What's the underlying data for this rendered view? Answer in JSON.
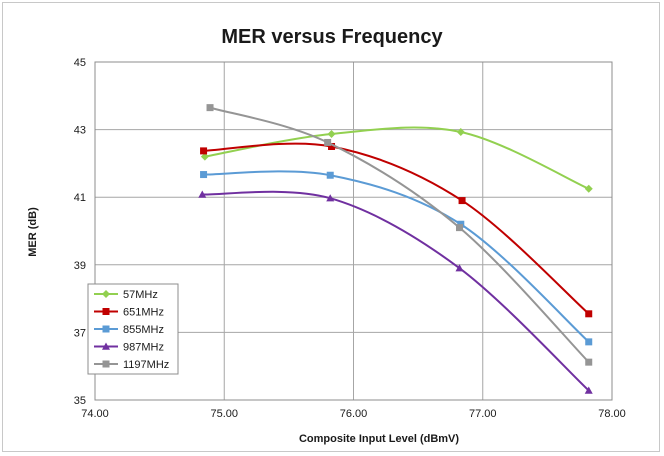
{
  "chart_data": {
    "type": "line",
    "title": "MER versus Frequency",
    "xlabel": "Composite Input Level (dBmV)",
    "ylabel": "MER (dB)",
    "xlim": [
      74.0,
      78.0
    ],
    "ylim": [
      35,
      45
    ],
    "x_ticks": [
      "74.00",
      "75.00",
      "76.00",
      "77.00",
      "78.00"
    ],
    "y_ticks": [
      "35",
      "37",
      "39",
      "41",
      "43",
      "45"
    ],
    "x_tick_values": [
      74,
      75,
      76,
      77,
      78
    ],
    "y_tick_values": [
      35,
      37,
      39,
      41,
      43,
      45
    ],
    "grid": true,
    "legend_position": "bottom-left",
    "series": [
      {
        "name": "57MHz",
        "color": "#92d050",
        "marker": "diamond",
        "x": [
          74.85,
          75.83,
          76.83,
          77.82
        ],
        "y": [
          42.2,
          42.87,
          42.93,
          41.25
        ]
      },
      {
        "name": "651MHz",
        "color": "#c00000",
        "marker": "square",
        "x": [
          74.84,
          75.83,
          76.84,
          77.82
        ],
        "y": [
          42.37,
          42.5,
          40.9,
          37.55
        ]
      },
      {
        "name": "855MHz",
        "color": "#5b9bd5",
        "marker": "square",
        "x": [
          74.84,
          75.82,
          76.83,
          77.82
        ],
        "y": [
          41.67,
          41.65,
          40.2,
          36.72
        ]
      },
      {
        "name": "987MHz",
        "color": "#7030a0",
        "marker": "triangle",
        "x": [
          74.83,
          75.82,
          76.82,
          77.82
        ],
        "y": [
          41.08,
          40.97,
          38.9,
          35.28
        ]
      },
      {
        "name": "1197MHz",
        "color": "#959595",
        "marker": "square",
        "x": [
          74.89,
          75.8,
          76.82,
          77.82
        ],
        "y": [
          43.65,
          42.62,
          40.1,
          36.12
        ]
      }
    ]
  }
}
